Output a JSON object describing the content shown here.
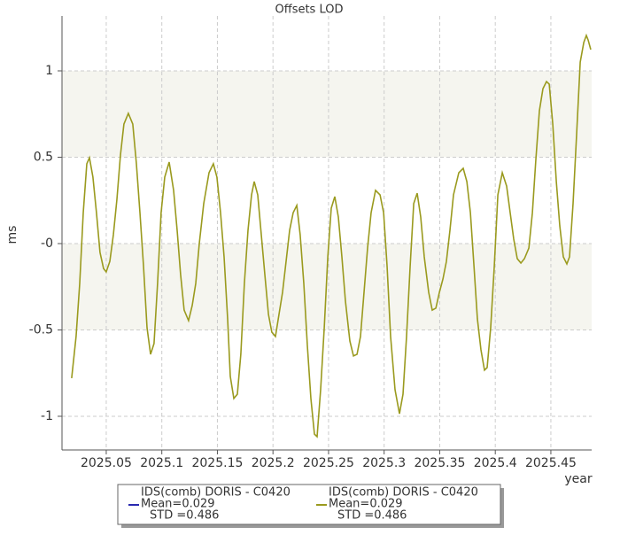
{
  "chart_data": {
    "type": "line",
    "title": "Offsets LOD",
    "x_label": "year",
    "y_label": "ms",
    "xlim": [
      2025.0102,
      2025.4867
    ],
    "ylim": [
      -1.195,
      1.318
    ],
    "xticks": [
      2025.05,
      2025.1,
      2025.15,
      2025.2,
      2025.25,
      2025.3,
      2025.35,
      2025.4,
      2025.45
    ],
    "yticks": [
      1,
      0.5,
      {
        "value": 0,
        "label": "-0"
      },
      -0.5,
      -1
    ],
    "grid": true,
    "alternate_bands": true,
    "series": [
      {
        "name": "IDS(comb) DORIS - C0420",
        "color": "#9a9a1e",
        "x": [
          2025.0189,
          2025.0229,
          2025.0261,
          2025.0293,
          2025.0325,
          2025.0349,
          2025.038,
          2025.0412,
          2025.0444,
          2025.0476,
          2025.05,
          2025.0532,
          2025.0564,
          2025.0596,
          2025.0628,
          2025.0659,
          2025.0699,
          2025.0739,
          2025.0771,
          2025.0803,
          2025.0835,
          2025.0867,
          2025.0899,
          2025.093,
          2025.0962,
          2025.0994,
          2025.1026,
          2025.1066,
          2025.1106,
          2025.1138,
          2025.1169,
          2025.1201,
          2025.1241,
          2025.1273,
          2025.1305,
          2025.1337,
          2025.1377,
          2025.1425,
          2025.1464,
          2025.1496,
          2025.1528,
          2025.156,
          2025.1592,
          2025.1616,
          2025.1648,
          2025.168,
          2025.1711,
          2025.1743,
          2025.1775,
          2025.1807,
          2025.1831,
          2025.1863,
          2025.1895,
          2025.1927,
          2025.1959,
          2025.199,
          2025.2022,
          2025.2054,
          2025.2086,
          2025.2118,
          2025.215,
          2025.2182,
          2025.2214,
          2025.2245,
          2025.2277,
          2025.2309,
          2025.2341,
          2025.2373,
          2025.2397,
          2025.2429,
          2025.2461,
          2025.2493,
          2025.2524,
          2025.2556,
          2025.2588,
          2025.262,
          2025.2652,
          2025.2692,
          2025.2724,
          2025.2756,
          2025.2787,
          2025.2819,
          2025.2851,
          2025.2883,
          2025.2923,
          2025.2963,
          2025.2995,
          2025.3026,
          2025.3058,
          2025.3098,
          2025.3138,
          2025.317,
          2025.3202,
          2025.3234,
          2025.3266,
          2025.3297,
          2025.3329,
          2025.3361,
          2025.3401,
          2025.3433,
          2025.3465,
          2025.3497,
          2025.3529,
          2025.356,
          2025.3592,
          2025.3624,
          2025.3672,
          2025.3712,
          2025.3744,
          2025.3776,
          2025.3808,
          2025.3839,
          2025.3871,
          2025.3903,
          2025.3927,
          2025.3959,
          2025.3991,
          2025.4023,
          2025.4063,
          2025.4102,
          2025.4134,
          2025.4166,
          2025.4198,
          2025.423,
          2025.4262,
          2025.4302,
          2025.4334,
          2025.4365,
          2025.4397,
          2025.4429,
          2025.4461,
          2025.4485,
          2025.4517,
          2025.4549,
          2025.458,
          2025.4612,
          2025.4644,
          2025.4668,
          2025.47,
          2025.4732,
          2025.4764,
          2025.4796,
          2025.4819,
          2025.4835,
          2025.4859
        ],
        "values": [
          -0.779,
          -0.538,
          -0.231,
          0.179,
          0.462,
          0.497,
          0.385,
          0.179,
          -0.051,
          -0.144,
          -0.164,
          -0.103,
          0.051,
          0.256,
          0.513,
          0.692,
          0.754,
          0.692,
          0.462,
          0.179,
          -0.128,
          -0.487,
          -0.641,
          -0.579,
          -0.231,
          0.179,
          0.385,
          0.472,
          0.308,
          0.077,
          -0.179,
          -0.385,
          -0.446,
          -0.359,
          -0.231,
          0,
          0.231,
          0.41,
          0.462,
          0.385,
          0.179,
          -0.077,
          -0.436,
          -0.769,
          -0.897,
          -0.872,
          -0.641,
          -0.231,
          0.077,
          0.282,
          0.359,
          0.282,
          0.051,
          -0.179,
          -0.41,
          -0.513,
          -0.538,
          -0.41,
          -0.282,
          -0.103,
          0.077,
          0.179,
          0.221,
          0.051,
          -0.231,
          -0.59,
          -0.897,
          -1.103,
          -1.118,
          -0.846,
          -0.487,
          -0.077,
          0.205,
          0.272,
          0.154,
          -0.077,
          -0.333,
          -0.564,
          -0.651,
          -0.641,
          -0.538,
          -0.282,
          -0.026,
          0.179,
          0.308,
          0.282,
          0.179,
          -0.128,
          -0.538,
          -0.846,
          -0.985,
          -0.872,
          -0.538,
          -0.128,
          0.231,
          0.292,
          0.154,
          -0.077,
          -0.282,
          -0.385,
          -0.374,
          -0.282,
          -0.205,
          -0.103,
          0.077,
          0.282,
          0.41,
          0.436,
          0.359,
          0.179,
          -0.128,
          -0.436,
          -0.615,
          -0.733,
          -0.718,
          -0.487,
          -0.128,
          0.282,
          0.41,
          0.333,
          0.179,
          0.026,
          -0.087,
          -0.113,
          -0.087,
          -0.026,
          0.179,
          0.487,
          0.769,
          0.897,
          0.938,
          0.923,
          0.692,
          0.359,
          0.103,
          -0.077,
          -0.118,
          -0.077,
          0.231,
          0.641,
          1.051,
          1.164,
          1.205,
          1.179,
          1.123
        ]
      }
    ],
    "legend": [
      {
        "name": "IDS(comb) DORIS - C0420",
        "color": "#2a2ab0",
        "mean": "Mean=0.029",
        "std": "STD =0.486"
      },
      {
        "name": "IDS(comb) DORIS - C0420",
        "color": "#9a9a1e",
        "mean": "Mean=0.029",
        "std": "STD =0.486"
      }
    ]
  }
}
